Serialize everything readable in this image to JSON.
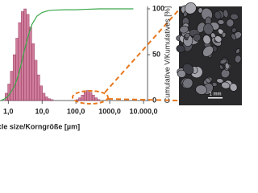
{
  "chart_data": {
    "type": "histogram",
    "xlabel": "cle size/Korngröße [µm]",
    "ylabel": "Cumulative V/Kumulatives [%]",
    "log_x": true,
    "xlim": [
      0.6,
      10000
    ],
    "xticks": [
      {
        "value": 1,
        "label": "1,0"
      },
      {
        "value": 10,
        "label": "10,0"
      },
      {
        "value": 100,
        "label": "100,0"
      },
      {
        "value": 1000,
        "label": "1000,0"
      },
      {
        "value": 10000,
        "label": "10.000,0"
      }
    ],
    "ylim": [
      0,
      100
    ],
    "yticks": [
      0,
      50,
      100
    ],
    "histograms": [
      {
        "color": "#c0507a",
        "bins": [
          0.8,
          0.96,
          1.15,
          1.38,
          1.66,
          1.99,
          2.39,
          2.87,
          3.44,
          4.13,
          4.95,
          5.94,
          7.13,
          8.56,
          10.3,
          12.3,
          14.8,
          17.7,
          21.3
        ],
        "values": [
          8,
          18,
          32,
          50,
          68,
          85,
          97,
          100,
          94,
          80,
          62,
          44,
          28,
          16,
          8,
          4,
          2,
          1
        ]
      },
      {
        "color": "#c0507a",
        "bins": [
          100,
          120,
          144,
          173,
          207,
          249,
          299,
          358,
          430,
          516
        ],
        "values": [
          1,
          3,
          6,
          9,
          11,
          9,
          6,
          3,
          1
        ]
      }
    ],
    "cumulative": {
      "color": "#3aa84a",
      "x": [
        0.6,
        0.8,
        1,
        1.5,
        2,
        2.5,
        3,
        4,
        5,
        7,
        10,
        15,
        20,
        50,
        100,
        200,
        500,
        1000,
        5000
      ],
      "values": [
        0,
        2,
        5,
        15,
        28,
        42,
        55,
        72,
        83,
        92,
        96,
        98,
        98.5,
        99,
        99,
        99.5,
        100,
        100,
        100
      ]
    },
    "annotation_color": "#e8781e"
  },
  "inset": {
    "scale_label": "1 mm"
  }
}
